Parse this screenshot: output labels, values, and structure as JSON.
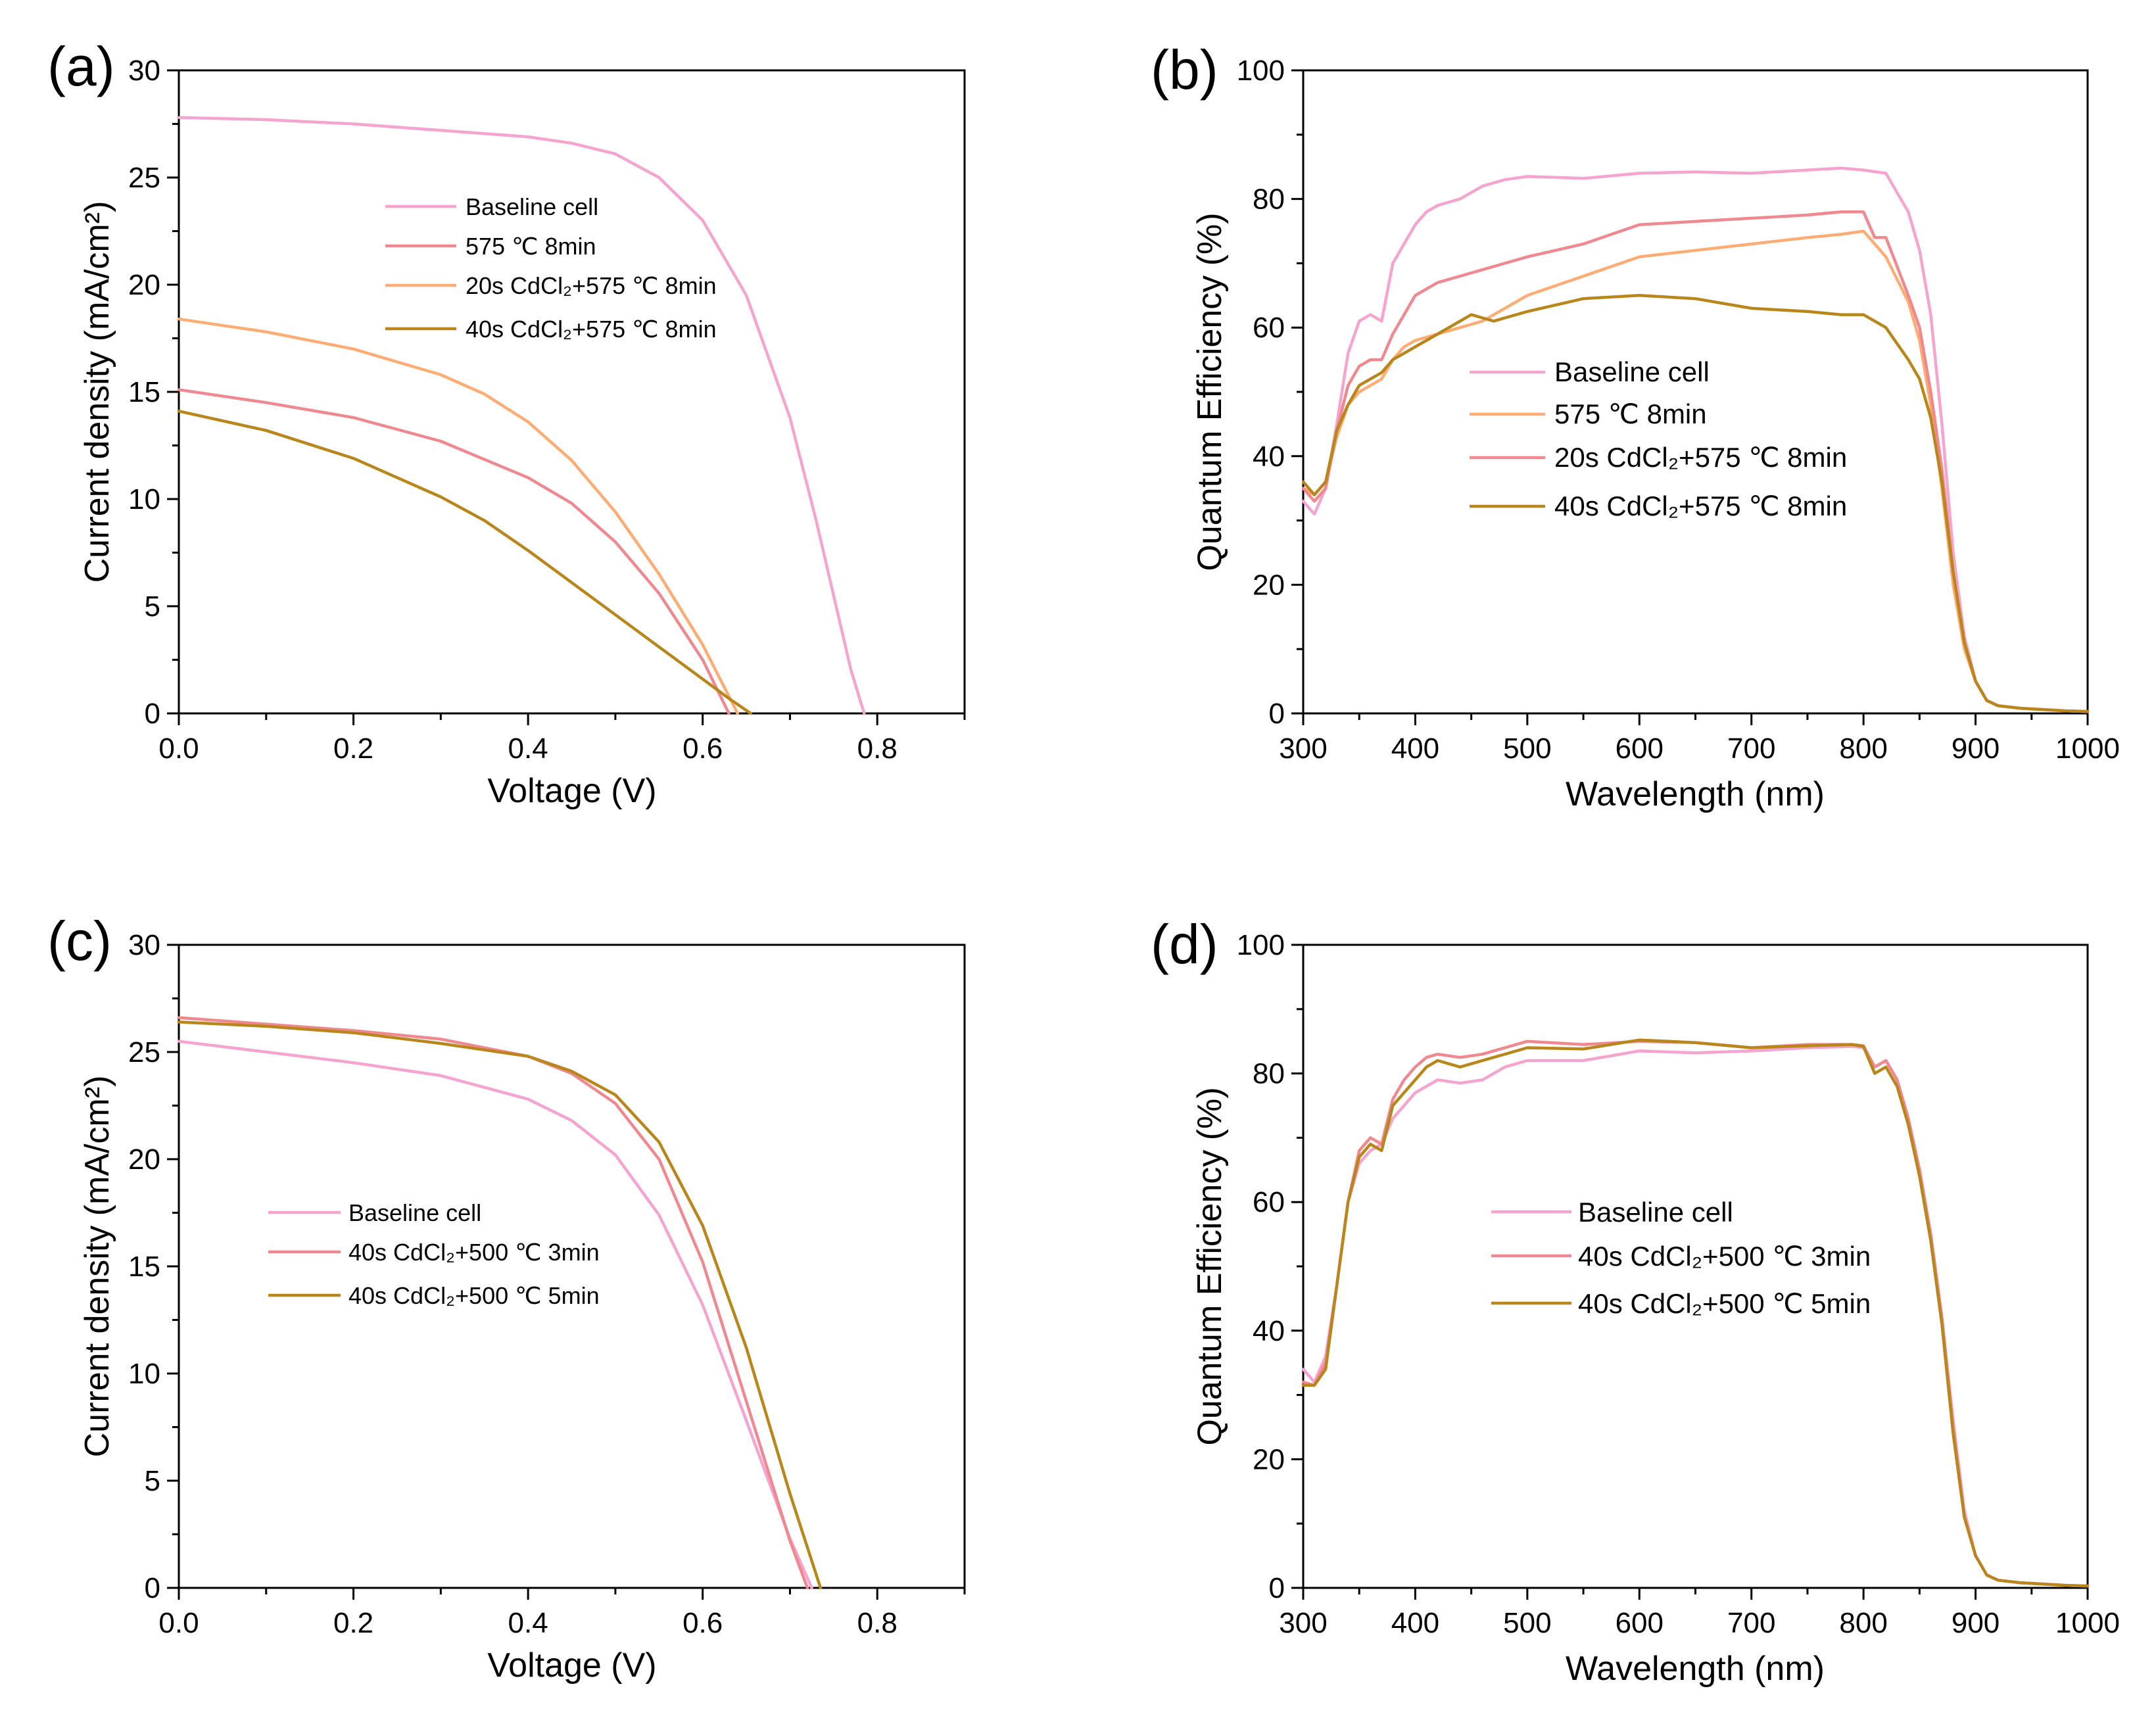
{
  "chart_data": [
    {
      "panel": "(a)",
      "type": "line",
      "xlabel": "Voltage (V)",
      "ylabel": "Current density (mA/cm²)",
      "xlim": [
        0,
        0.9
      ],
      "ylim": [
        0,
        30
      ],
      "xticks": [
        "0.0",
        "0.2",
        "0.4",
        "0.6",
        "0.8"
      ],
      "yticks": [
        "0",
        "5",
        "10",
        "15",
        "20",
        "25",
        "30"
      ],
      "legend_position": "center",
      "series": [
        {
          "name": "Baseline cell",
          "color": "#f5a3cf",
          "x": [
            0,
            0.1,
            0.2,
            0.3,
            0.4,
            0.45,
            0.5,
            0.55,
            0.6,
            0.65,
            0.7,
            0.73,
            0.75,
            0.77,
            0.785
          ],
          "y": [
            27.8,
            27.7,
            27.5,
            27.2,
            26.9,
            26.6,
            26.1,
            25.0,
            23.0,
            19.5,
            13.8,
            9.0,
            5.5,
            2.0,
            0
          ]
        },
        {
          "name": "575 ℃ 8min",
          "color": "#f08890",
          "x": [
            0,
            0.1,
            0.2,
            0.3,
            0.4,
            0.45,
            0.5,
            0.55,
            0.6,
            0.63
          ],
          "y": [
            15.1,
            14.5,
            13.8,
            12.7,
            11.0,
            9.8,
            8.0,
            5.6,
            2.5,
            0
          ]
        },
        {
          "name": "20s CdCl₂+575 ℃ 8min",
          "color": "#fdad74",
          "x": [
            0,
            0.1,
            0.2,
            0.3,
            0.35,
            0.4,
            0.45,
            0.5,
            0.55,
            0.6,
            0.64
          ],
          "y": [
            18.4,
            17.8,
            17.0,
            15.8,
            14.9,
            13.6,
            11.8,
            9.4,
            6.5,
            3.2,
            0
          ]
        },
        {
          "name": "40s CdCl₂+575 ℃ 8min",
          "color": "#b8861a",
          "x": [
            0,
            0.1,
            0.2,
            0.3,
            0.35,
            0.4,
            0.45,
            0.5,
            0.55,
            0.6,
            0.63,
            0.655
          ],
          "y": [
            14.1,
            13.2,
            11.9,
            10.1,
            9.0,
            7.6,
            6.1,
            4.6,
            3.1,
            1.6,
            0.7,
            0
          ]
        }
      ]
    },
    {
      "panel": "(b)",
      "type": "line",
      "xlabel": "Wavelength (nm)",
      "ylabel": "Quantum Efficiency (%)",
      "xlim": [
        300,
        1000
      ],
      "ylim": [
        0,
        100
      ],
      "xticks": [
        "300",
        "400",
        "500",
        "600",
        "700",
        "800",
        "900",
        "1000"
      ],
      "yticks": [
        "0",
        "20",
        "40",
        "60",
        "80",
        "100"
      ],
      "legend_position": "center",
      "series": [
        {
          "name": "Baseline cell",
          "color": "#f5a3cf",
          "x": [
            300,
            310,
            320,
            330,
            340,
            350,
            360,
            370,
            380,
            390,
            400,
            410,
            420,
            440,
            460,
            480,
            500,
            550,
            600,
            650,
            700,
            750,
            780,
            800,
            820,
            840,
            850,
            860,
            870,
            880,
            890,
            900,
            910,
            920,
            940,
            960,
            980,
            1000
          ],
          "y": [
            33,
            31,
            35,
            45,
            56,
            61,
            62,
            61,
            70,
            73,
            76,
            78,
            79,
            80,
            82,
            83,
            83.5,
            83.2,
            84,
            84.2,
            84,
            84.5,
            84.8,
            84.5,
            84,
            78,
            72,
            62,
            45,
            25,
            12,
            5,
            2,
            1.2,
            0.8,
            0.6,
            0.4,
            0.3
          ]
        },
        {
          "name": "575 ℃ 8min",
          "color": "#fdad74",
          "x": [
            300,
            310,
            320,
            330,
            340,
            350,
            360,
            370,
            380,
            390,
            400,
            420,
            440,
            460,
            480,
            500,
            550,
            600,
            650,
            700,
            750,
            780,
            800,
            820,
            840,
            850,
            860,
            870,
            880,
            890,
            900,
            910,
            920,
            940,
            960,
            980,
            1000
          ],
          "y": [
            35,
            34,
            36,
            43,
            48,
            50,
            51,
            52,
            55,
            57,
            58,
            59,
            60,
            61,
            63,
            65,
            68,
            71,
            72,
            73,
            74,
            74.5,
            75,
            71,
            64,
            58,
            48,
            35,
            20,
            10,
            5,
            2,
            1.2,
            0.8,
            0.6,
            0.4,
            0.3
          ]
        },
        {
          "name": "20s CdCl₂+575 ℃ 8min",
          "color": "#f08890",
          "x": [
            300,
            310,
            320,
            330,
            340,
            350,
            360,
            370,
            380,
            390,
            400,
            420,
            440,
            460,
            480,
            500,
            550,
            600,
            650,
            700,
            750,
            780,
            800,
            810,
            820,
            840,
            850,
            860,
            870,
            880,
            890,
            900,
            910,
            920,
            940,
            960,
            980,
            1000
          ],
          "y": [
            35,
            33,
            35,
            44,
            51,
            54,
            55,
            55,
            59,
            62,
            65,
            67,
            68,
            69,
            70,
            71,
            73,
            76,
            76.5,
            77,
            77.5,
            78,
            78,
            74,
            74,
            65,
            60,
            50,
            38,
            22,
            11,
            5,
            2,
            1.2,
            0.8,
            0.6,
            0.4,
            0.3
          ]
        },
        {
          "name": "40s CdCl₂+575 ℃ 8min",
          "color": "#b8861a",
          "x": [
            300,
            310,
            320,
            330,
            340,
            350,
            360,
            370,
            380,
            390,
            400,
            420,
            440,
            450,
            460,
            470,
            480,
            500,
            550,
            600,
            650,
            700,
            750,
            780,
            800,
            820,
            840,
            850,
            860,
            870,
            880,
            890,
            900,
            910,
            920,
            940,
            960,
            980,
            1000
          ],
          "y": [
            36,
            34,
            36,
            44,
            48,
            51,
            52,
            53,
            55,
            56,
            57,
            59,
            61,
            62,
            61.5,
            61,
            61.5,
            62.5,
            64.5,
            65,
            64.5,
            63,
            62.5,
            62,
            62,
            60,
            55,
            52,
            46,
            36,
            22,
            11,
            5,
            2,
            1.2,
            0.8,
            0.6,
            0.4,
            0.3
          ]
        }
      ]
    },
    {
      "panel": "(c)",
      "type": "line",
      "xlabel": "Voltage (V)",
      "ylabel": "Current density (mA/cm²)",
      "xlim": [
        0,
        0.9
      ],
      "ylim": [
        0,
        30
      ],
      "xticks": [
        "0.0",
        "0.2",
        "0.4",
        "0.6",
        "0.8"
      ],
      "yticks": [
        "0",
        "5",
        "10",
        "15",
        "20",
        "25",
        "30"
      ],
      "legend_position": "center-left",
      "series": [
        {
          "name": "Baseline cell",
          "color": "#f5a3cf",
          "x": [
            0,
            0.1,
            0.2,
            0.3,
            0.4,
            0.45,
            0.5,
            0.55,
            0.6,
            0.65,
            0.7,
            0.725
          ],
          "y": [
            25.5,
            25.0,
            24.5,
            23.9,
            22.8,
            21.8,
            20.2,
            17.4,
            13.2,
            7.8,
            2.3,
            0
          ]
        },
        {
          "name": "40s CdCl₂+500 ℃ 3min",
          "color": "#f08890",
          "x": [
            0,
            0.1,
            0.2,
            0.3,
            0.4,
            0.45,
            0.5,
            0.55,
            0.6,
            0.65,
            0.7,
            0.72
          ],
          "y": [
            26.6,
            26.3,
            26.0,
            25.6,
            24.8,
            24.0,
            22.6,
            20.0,
            15.2,
            8.7,
            2.2,
            0
          ]
        },
        {
          "name": "40s CdCl₂+500 ℃ 5min",
          "color": "#b8861a",
          "x": [
            0,
            0.1,
            0.2,
            0.3,
            0.4,
            0.45,
            0.5,
            0.55,
            0.6,
            0.65,
            0.7,
            0.735
          ],
          "y": [
            26.4,
            26.2,
            25.9,
            25.4,
            24.8,
            24.1,
            23.0,
            20.8,
            16.9,
            11.2,
            4.4,
            0
          ]
        }
      ]
    },
    {
      "panel": "(d)",
      "type": "line",
      "xlabel": "Wavelength (nm)",
      "ylabel": "Quantum Efficiency (%)",
      "xlim": [
        300,
        1000
      ],
      "ylim": [
        0,
        100
      ],
      "xticks": [
        "300",
        "400",
        "500",
        "600",
        "700",
        "800",
        "900",
        "1000"
      ],
      "yticks": [
        "0",
        "20",
        "40",
        "60",
        "80",
        "100"
      ],
      "legend_position": "center",
      "series": [
        {
          "name": "Baseline cell",
          "color": "#f5a3cf",
          "x": [
            300,
            310,
            320,
            330,
            340,
            350,
            360,
            370,
            380,
            390,
            400,
            420,
            440,
            460,
            480,
            500,
            550,
            600,
            650,
            700,
            750,
            790,
            800,
            810,
            820,
            830,
            840,
            850,
            860,
            870,
            880,
            890,
            900,
            910,
            920,
            940,
            960,
            980,
            1000
          ],
          "y": [
            34,
            32,
            36,
            47,
            60,
            66,
            68,
            69,
            73,
            75,
            77,
            79,
            78.5,
            79,
            81,
            82,
            82,
            83.5,
            83.2,
            83.5,
            84,
            84.2,
            84,
            81,
            82,
            79,
            73,
            65,
            55,
            42,
            26,
            12,
            5,
            2,
            1.2,
            0.8,
            0.6,
            0.4,
            0.3
          ]
        },
        {
          "name": "40s CdCl₂+500 ℃ 3min",
          "color": "#f08890",
          "x": [
            300,
            310,
            320,
            330,
            340,
            350,
            360,
            370,
            380,
            390,
            400,
            410,
            420,
            440,
            460,
            480,
            500,
            550,
            600,
            650,
            700,
            750,
            790,
            800,
            810,
            820,
            830,
            840,
            850,
            860,
            870,
            880,
            890,
            900,
            910,
            920,
            940,
            960,
            980,
            1000
          ],
          "y": [
            32,
            31.5,
            35,
            47,
            60,
            68,
            70,
            69,
            76,
            79,
            81,
            82.5,
            83,
            82.5,
            83,
            84,
            85,
            84.5,
            85,
            84.8,
            84,
            84.5,
            84.5,
            84.3,
            81,
            82,
            79,
            73,
            65,
            55,
            42,
            25,
            11,
            5,
            2,
            1.2,
            0.8,
            0.6,
            0.4,
            0.3
          ]
        },
        {
          "name": "40s CdCl₂+500 ℃ 5min",
          "color": "#b8861a",
          "x": [
            300,
            310,
            320,
            330,
            340,
            350,
            360,
            370,
            380,
            390,
            400,
            410,
            420,
            440,
            460,
            480,
            500,
            550,
            600,
            650,
            700,
            750,
            790,
            800,
            810,
            820,
            830,
            840,
            850,
            860,
            870,
            880,
            890,
            900,
            910,
            920,
            940,
            960,
            980,
            1000
          ],
          "y": [
            31.5,
            31.5,
            34,
            47,
            60,
            67,
            69,
            68,
            75,
            77,
            79,
            81,
            82,
            81,
            82,
            83,
            84,
            83.8,
            85.2,
            84.8,
            84,
            84.3,
            84.5,
            84.2,
            80,
            81,
            78,
            72,
            64,
            54,
            41,
            24,
            11,
            5,
            2,
            1.2,
            0.8,
            0.6,
            0.4,
            0.3
          ]
        }
      ]
    }
  ]
}
